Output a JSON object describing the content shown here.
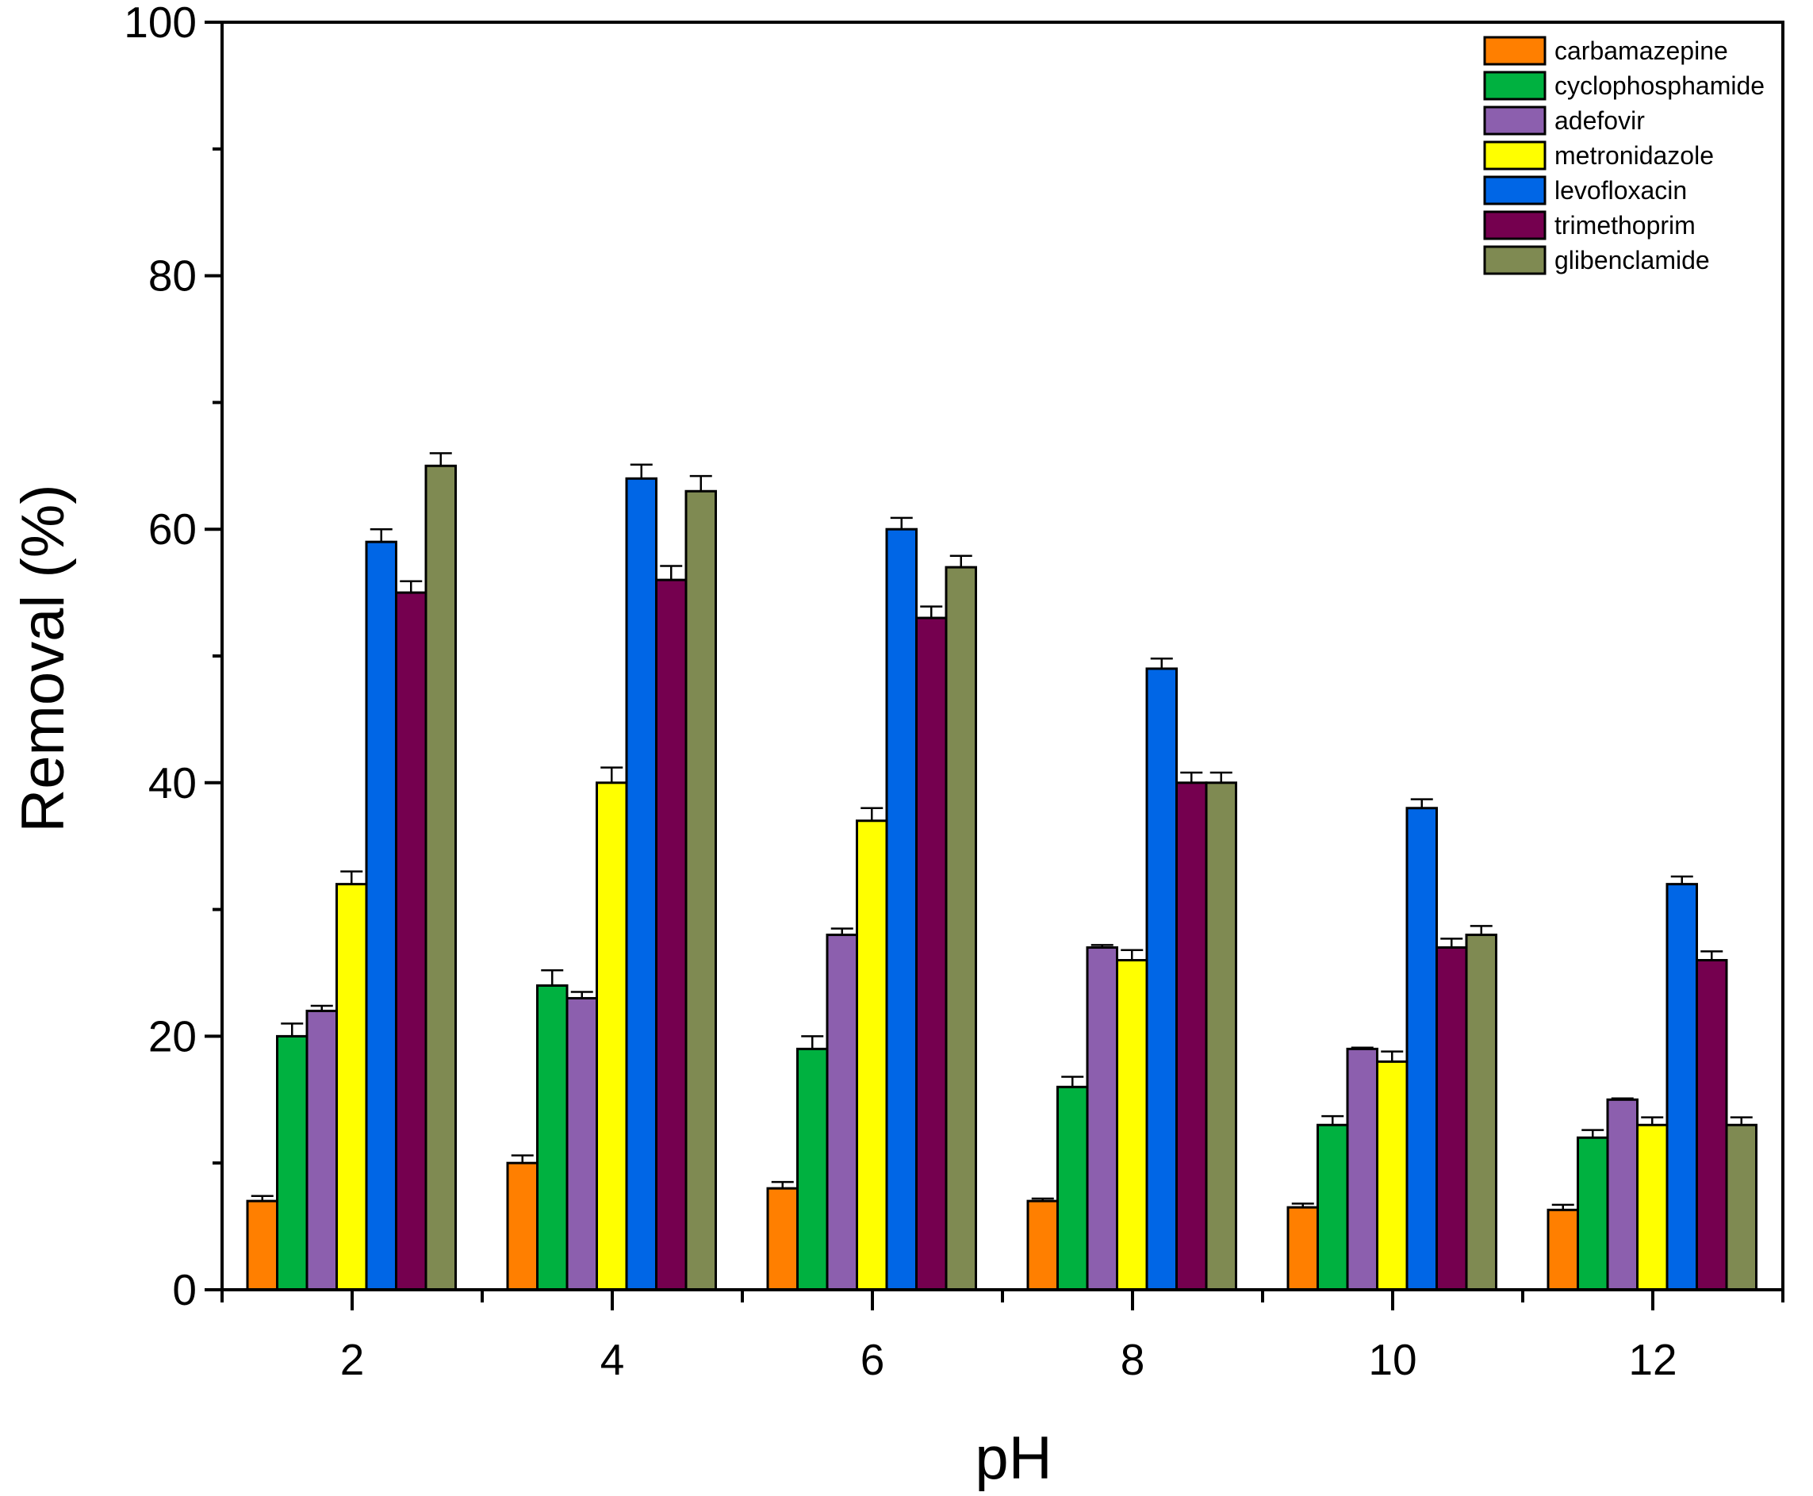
{
  "chart_data": {
    "type": "bar",
    "title": "",
    "xlabel": "pH",
    "ylabel": "Removal (%)",
    "ylim": [
      0,
      100
    ],
    "yticks": [
      0,
      20,
      40,
      60,
      80,
      100
    ],
    "categories": [
      "2",
      "4",
      "6",
      "8",
      "10",
      "12"
    ],
    "legend_position": "top-right",
    "series": [
      {
        "name": "carbamazepine",
        "color": "#ff7f00",
        "values": [
          7,
          10,
          8,
          7,
          6.5,
          6.3
        ],
        "errors": [
          0.4,
          0.6,
          0.5,
          0.2,
          0.3,
          0.4
        ]
      },
      {
        "name": "cyclophosphamide",
        "color": "#00b140",
        "values": [
          20,
          24,
          19,
          16,
          13,
          12
        ],
        "errors": [
          1.0,
          1.2,
          1.0,
          0.8,
          0.7,
          0.6
        ]
      },
      {
        "name": "adefovir",
        "color": "#8c5fae",
        "values": [
          22,
          23,
          28,
          27,
          19,
          15
        ],
        "errors": [
          0.4,
          0.5,
          0.5,
          0.2,
          0.1,
          0.1
        ]
      },
      {
        "name": "metronidazole",
        "color": "#ffff00",
        "values": [
          32,
          40,
          37,
          26,
          18,
          13
        ],
        "errors": [
          1.0,
          1.2,
          1.0,
          0.8,
          0.8,
          0.6
        ]
      },
      {
        "name": "levofloxacin",
        "color": "#0066e6",
        "values": [
          59,
          64,
          60,
          49,
          38,
          32
        ],
        "errors": [
          1.0,
          1.1,
          0.9,
          0.8,
          0.7,
          0.6
        ]
      },
      {
        "name": "trimethoprim",
        "color": "#75004f",
        "values": [
          55,
          56,
          53,
          40,
          27,
          26
        ],
        "errors": [
          0.9,
          1.1,
          0.9,
          0.8,
          0.7,
          0.7
        ]
      },
      {
        "name": "glibenclamide",
        "color": "#7f8a52",
        "values": [
          65,
          63,
          57,
          40,
          28,
          13
        ],
        "errors": [
          1.0,
          1.2,
          0.9,
          0.8,
          0.7,
          0.6
        ]
      }
    ]
  }
}
